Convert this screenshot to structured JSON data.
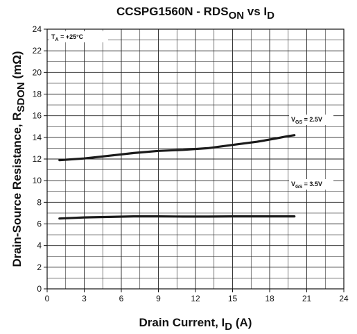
{
  "chart_data": {
    "type": "line",
    "title": "CCSPG1560N - RDSON vs ID",
    "title_parts": {
      "main": "CCSPG1560N - RDS",
      "sub1": "ON",
      "mid": " vs I",
      "sub2": "D"
    },
    "xlabel_parts": {
      "main": "Drain Current, I",
      "sub": "D",
      "tail": " (A)"
    },
    "ylabel_parts": {
      "main": "Drain-Source Resistance, R",
      "sub": "SDON",
      "tail": " (mΩ)"
    },
    "xlim": [
      0,
      24
    ],
    "ylim": [
      0,
      24
    ],
    "x_major_ticks": [
      0,
      3,
      6,
      9,
      12,
      15,
      18,
      21,
      24
    ],
    "y_major_ticks": [
      0,
      2,
      4,
      6,
      8,
      10,
      12,
      14,
      16,
      18,
      20,
      22,
      24
    ],
    "x_minor_step": 1.5,
    "y_minor_step": 1,
    "grid": true,
    "line_color": "#1a1a1a",
    "annotations": {
      "ta": {
        "main": "T",
        "sub": "A",
        "tail": " = +25°C"
      },
      "vgs25": {
        "main": "V",
        "sub": "GS",
        "tail": " = 2.5V"
      },
      "vgs35": {
        "main": "V",
        "sub": "GS",
        "tail": " = 3.5V"
      }
    },
    "series": [
      {
        "x": [
          1,
          3,
          5,
          7,
          9,
          11,
          13,
          15,
          17,
          18.5,
          19.4,
          20
        ],
        "y": [
          11.9,
          12.05,
          12.3,
          12.55,
          12.75,
          12.85,
          13.0,
          13.3,
          13.6,
          13.9,
          14.1,
          14.2
        ]
      },
      {
        "x": [
          1,
          3,
          5,
          7,
          9,
          11,
          13,
          15,
          17,
          20
        ],
        "y": [
          6.5,
          6.6,
          6.65,
          6.7,
          6.7,
          6.68,
          6.68,
          6.7,
          6.7,
          6.7
        ]
      }
    ]
  }
}
